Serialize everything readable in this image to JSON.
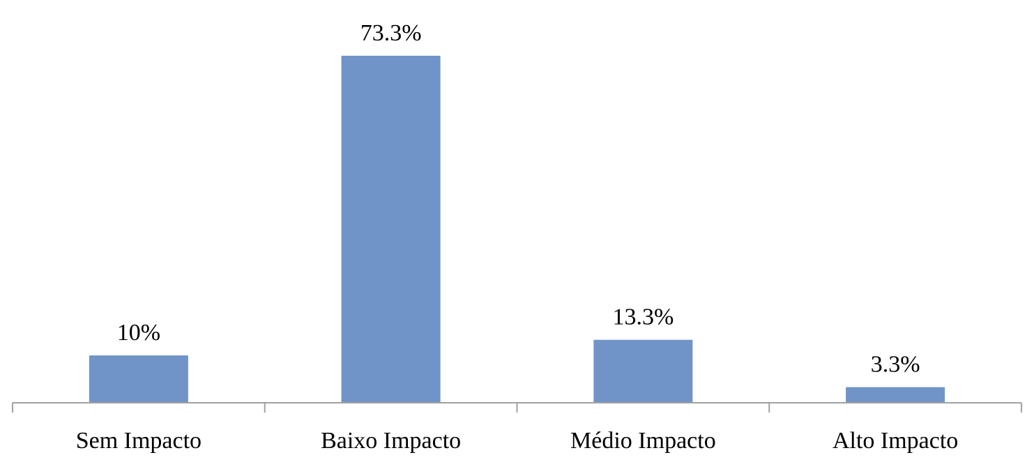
{
  "chart_data": {
    "type": "bar",
    "categories": [
      "Sem Impacto",
      "Baixo Impacto",
      "Médio Impacto",
      "Alto Impacto"
    ],
    "values": [
      10,
      73.3,
      13.3,
      3.3
    ],
    "value_labels": [
      "10%",
      "73.3%",
      "13.3%",
      "3.3%"
    ],
    "color": "#7094c8"
  }
}
